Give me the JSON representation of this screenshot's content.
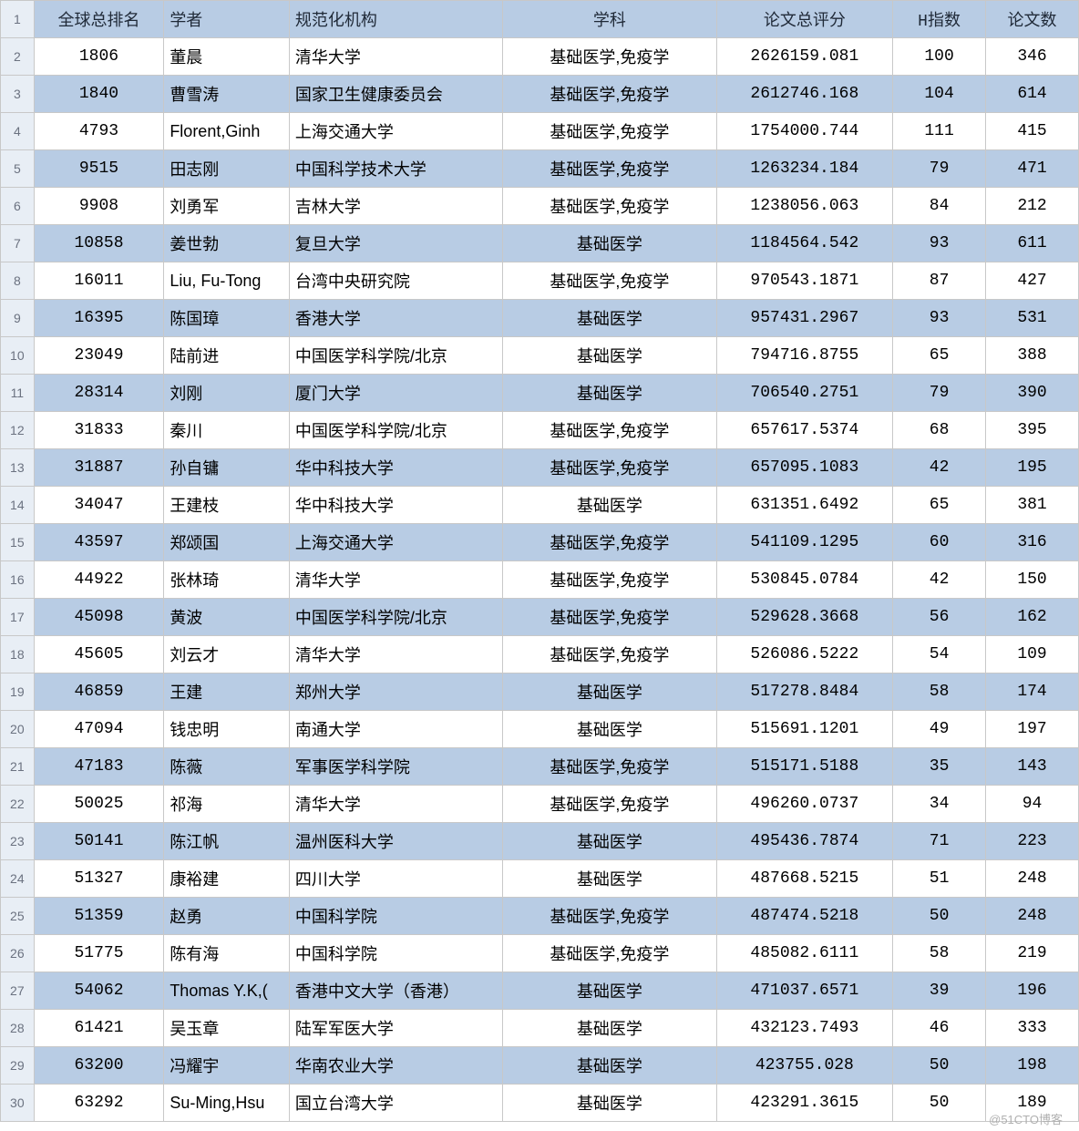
{
  "table": {
    "columns": [
      {
        "key": "rank",
        "label": "全球总排名",
        "class": "col-rank"
      },
      {
        "key": "scholar",
        "label": "学者",
        "class": "col-scholar"
      },
      {
        "key": "institution",
        "label": "规范化机构",
        "class": "col-inst"
      },
      {
        "key": "subject",
        "label": "学科",
        "class": "col-subj"
      },
      {
        "key": "score",
        "label": "论文总评分",
        "class": "col-score"
      },
      {
        "key": "hindex",
        "label": "H指数",
        "class": "col-hidx"
      },
      {
        "key": "papers",
        "label": "论文数",
        "class": "col-papers"
      }
    ],
    "rows": [
      {
        "rank": "1806",
        "scholar": "董晨",
        "institution": "清华大学",
        "subject": "基础医学,免疫学",
        "score": "2626159.081",
        "hindex": "100",
        "papers": "346"
      },
      {
        "rank": "1840",
        "scholar": "曹雪涛",
        "institution": "国家卫生健康委员会",
        "subject": "基础医学,免疫学",
        "score": "2612746.168",
        "hindex": "104",
        "papers": "614"
      },
      {
        "rank": "4793",
        "scholar": "Florent,Ginh",
        "institution": "上海交通大学",
        "subject": "基础医学,免疫学",
        "score": "1754000.744",
        "hindex": "111",
        "papers": "415"
      },
      {
        "rank": "9515",
        "scholar": "田志刚",
        "institution": "中国科学技术大学",
        "subject": "基础医学,免疫学",
        "score": "1263234.184",
        "hindex": "79",
        "papers": "471"
      },
      {
        "rank": "9908",
        "scholar": "刘勇军",
        "institution": "吉林大学",
        "subject": "基础医学,免疫学",
        "score": "1238056.063",
        "hindex": "84",
        "papers": "212"
      },
      {
        "rank": "10858",
        "scholar": "姜世勃",
        "institution": "复旦大学",
        "subject": "基础医学",
        "score": "1184564.542",
        "hindex": "93",
        "papers": "611"
      },
      {
        "rank": "16011",
        "scholar": "Liu, Fu-Tong",
        "institution": "台湾中央研究院",
        "subject": "基础医学,免疫学",
        "score": "970543.1871",
        "hindex": "87",
        "papers": "427"
      },
      {
        "rank": "16395",
        "scholar": "陈国璋",
        "institution": "香港大学",
        "subject": "基础医学",
        "score": "957431.2967",
        "hindex": "93",
        "papers": "531"
      },
      {
        "rank": "23049",
        "scholar": "陆前进",
        "institution": "中国医学科学院/北京",
        "subject": "基础医学",
        "score": "794716.8755",
        "hindex": "65",
        "papers": "388"
      },
      {
        "rank": "28314",
        "scholar": "刘刚",
        "institution": "厦门大学",
        "subject": "基础医学",
        "score": "706540.2751",
        "hindex": "79",
        "papers": "390"
      },
      {
        "rank": "31833",
        "scholar": "秦川",
        "institution": "中国医学科学院/北京",
        "subject": "基础医学,免疫学",
        "score": "657617.5374",
        "hindex": "68",
        "papers": "395"
      },
      {
        "rank": "31887",
        "scholar": "孙自镛",
        "institution": "华中科技大学",
        "subject": "基础医学,免疫学",
        "score": "657095.1083",
        "hindex": "42",
        "papers": "195"
      },
      {
        "rank": "34047",
        "scholar": "王建枝",
        "institution": "华中科技大学",
        "subject": "基础医学",
        "score": "631351.6492",
        "hindex": "65",
        "papers": "381"
      },
      {
        "rank": "43597",
        "scholar": "郑颂国",
        "institution": "上海交通大学",
        "subject": "基础医学,免疫学",
        "score": "541109.1295",
        "hindex": "60",
        "papers": "316"
      },
      {
        "rank": "44922",
        "scholar": "张林琦",
        "institution": "清华大学",
        "subject": "基础医学,免疫学",
        "score": "530845.0784",
        "hindex": "42",
        "papers": "150"
      },
      {
        "rank": "45098",
        "scholar": "黄波",
        "institution": "中国医学科学院/北京",
        "subject": "基础医学,免疫学",
        "score": "529628.3668",
        "hindex": "56",
        "papers": "162"
      },
      {
        "rank": "45605",
        "scholar": "刘云才",
        "institution": "清华大学",
        "subject": "基础医学,免疫学",
        "score": "526086.5222",
        "hindex": "54",
        "papers": "109"
      },
      {
        "rank": "46859",
        "scholar": "王建",
        "institution": "郑州大学",
        "subject": "基础医学",
        "score": "517278.8484",
        "hindex": "58",
        "papers": "174"
      },
      {
        "rank": "47094",
        "scholar": "钱忠明",
        "institution": "南通大学",
        "subject": "基础医学",
        "score": "515691.1201",
        "hindex": "49",
        "papers": "197"
      },
      {
        "rank": "47183",
        "scholar": "陈薇",
        "institution": "军事医学科学院",
        "subject": "基础医学,免疫学",
        "score": "515171.5188",
        "hindex": "35",
        "papers": "143"
      },
      {
        "rank": "50025",
        "scholar": "祁海",
        "institution": "清华大学",
        "subject": "基础医学,免疫学",
        "score": "496260.0737",
        "hindex": "34",
        "papers": "94"
      },
      {
        "rank": "50141",
        "scholar": "陈江帆",
        "institution": "温州医科大学",
        "subject": "基础医学",
        "score": "495436.7874",
        "hindex": "71",
        "papers": "223"
      },
      {
        "rank": "51327",
        "scholar": "康裕建",
        "institution": "四川大学",
        "subject": "基础医学",
        "score": "487668.5215",
        "hindex": "51",
        "papers": "248"
      },
      {
        "rank": "51359",
        "scholar": "赵勇",
        "institution": "中国科学院",
        "subject": "基础医学,免疫学",
        "score": "487474.5218",
        "hindex": "50",
        "papers": "248"
      },
      {
        "rank": "51775",
        "scholar": "陈有海",
        "institution": "中国科学院",
        "subject": "基础医学,免疫学",
        "score": "485082.6111",
        "hindex": "58",
        "papers": "219"
      },
      {
        "rank": "54062",
        "scholar": "Thomas Y.K,(",
        "institution": "香港中文大学（香港）",
        "subject": "基础医学",
        "score": "471037.6571",
        "hindex": "39",
        "papers": "196"
      },
      {
        "rank": "61421",
        "scholar": "吴玉章",
        "institution": "陆军军医大学",
        "subject": "基础医学",
        "score": "432123.7493",
        "hindex": "46",
        "papers": "333"
      },
      {
        "rank": "63200",
        "scholar": "冯耀宇",
        "institution": "华南农业大学",
        "subject": "基础医学",
        "score": "423755.028",
        "hindex": "50",
        "papers": "198"
      },
      {
        "rank": "63292",
        "scholar": "Su-Ming,Hsu",
        "institution": "国立台湾大学",
        "subject": "基础医学",
        "score": "423291.3615",
        "hindex": "50",
        "papers": "189"
      }
    ],
    "header_bg": "#b8cce4",
    "stripe_bg": "#b8cce4",
    "border_color": "#c8c8c8",
    "rowheader_bg": "#e8eef5"
  },
  "watermark": "@51CTO博客"
}
